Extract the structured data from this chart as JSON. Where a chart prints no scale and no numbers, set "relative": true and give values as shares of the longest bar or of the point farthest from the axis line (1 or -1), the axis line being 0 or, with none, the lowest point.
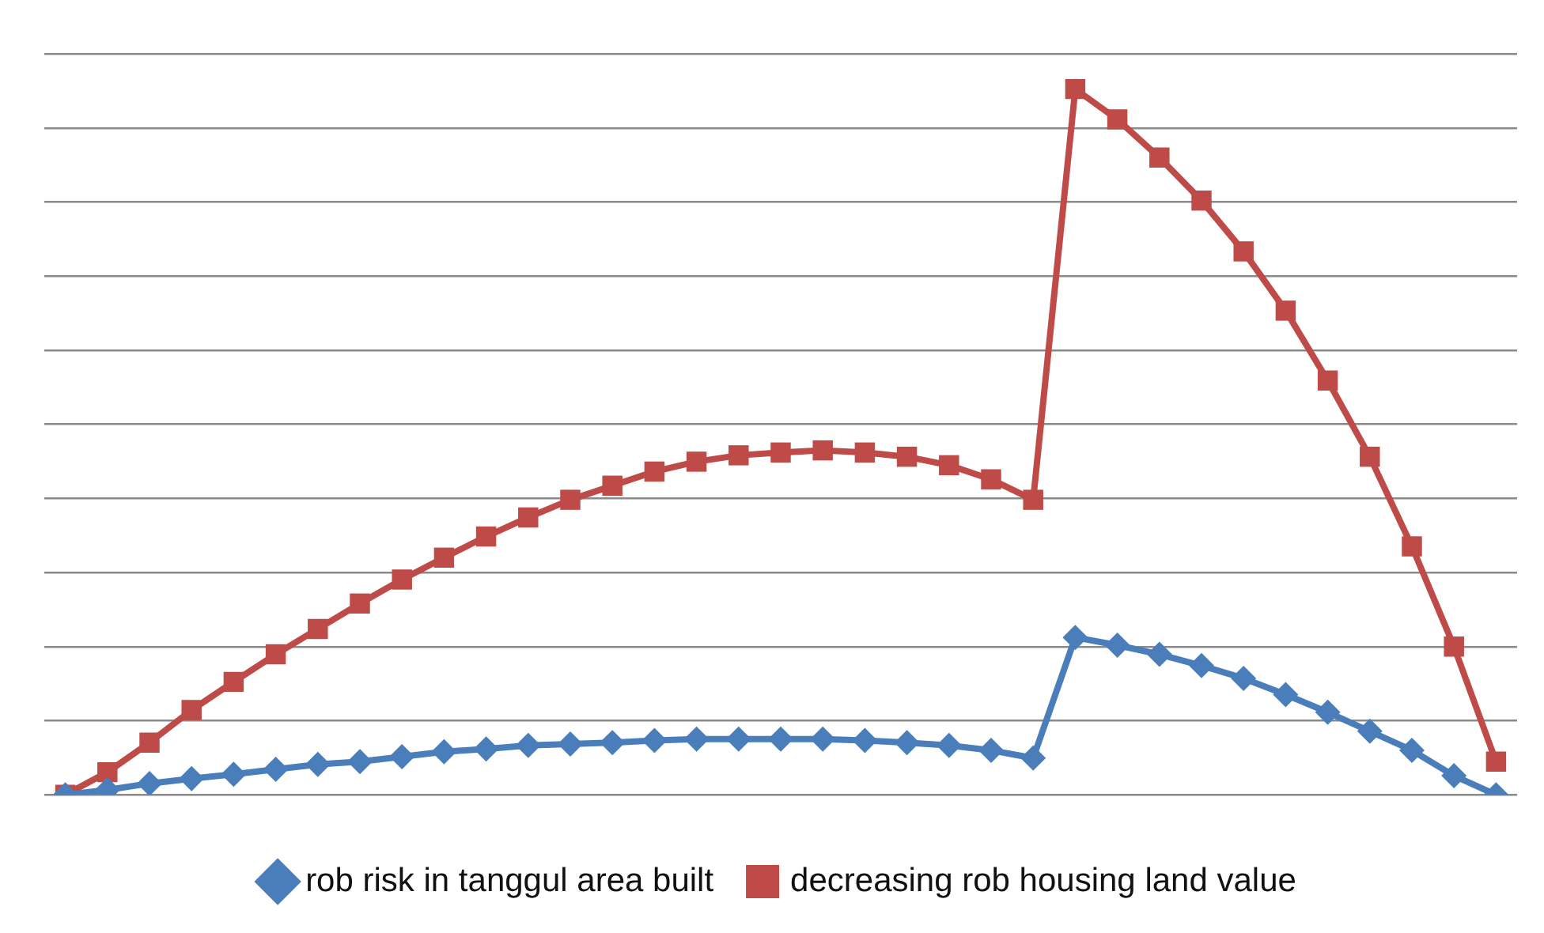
{
  "chart_data": {
    "type": "line",
    "relative": true,
    "grid": "y",
    "legend": "bottom",
    "categories": [
      null,
      null,
      null,
      null,
      null,
      null,
      null,
      null,
      null,
      null,
      null,
      null,
      null,
      null,
      null,
      null,
      null,
      null,
      null,
      null,
      null,
      null,
      null,
      null,
      null,
      null,
      null,
      null,
      null,
      null,
      null,
      null,
      null,
      null,
      null
    ],
    "series": [
      {
        "name": "rob risk in tanggul area built",
        "color": "#4a7ebb",
        "marker": "diamond",
        "values": [
          0,
          0.007,
          0.016,
          0.023,
          0.029,
          0.036,
          0.043,
          0.047,
          0.054,
          0.061,
          0.065,
          0.07,
          0.072,
          0.074,
          0.077,
          0.079,
          0.079,
          0.079,
          0.079,
          0.077,
          0.074,
          0.07,
          0.063,
          0.052,
          0.223,
          0.212,
          0.199,
          0.183,
          0.165,
          0.142,
          0.117,
          0.09,
          0.063,
          0.027,
          0
        ]
      },
      {
        "name": "decreasing rob housing land value",
        "color": "#be4b48",
        "marker": "square",
        "values": [
          0,
          0.032,
          0.074,
          0.12,
          0.16,
          0.199,
          0.235,
          0.271,
          0.305,
          0.336,
          0.366,
          0.393,
          0.418,
          0.438,
          0.458,
          0.472,
          0.481,
          0.485,
          0.488,
          0.485,
          0.479,
          0.467,
          0.447,
          0.418,
          1,
          0.957,
          0.903,
          0.842,
          0.77,
          0.686,
          0.587,
          0.479,
          0.352,
          0.21,
          0.047
        ]
      }
    ]
  }
}
